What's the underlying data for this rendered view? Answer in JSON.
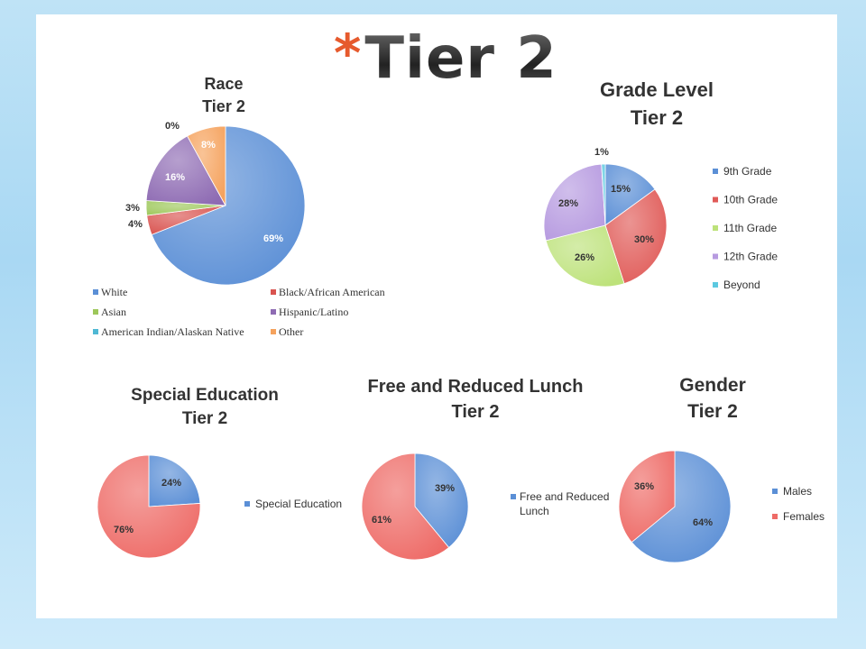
{
  "slide": {
    "title_star": "*",
    "title": "Tier 2"
  },
  "chart_data": [
    {
      "id": "race",
      "type": "pie",
      "title": "Race",
      "subtitle": "Tier 2",
      "legend": "bottom",
      "slices": [
        {
          "label": "White",
          "value": 69,
          "text": "69%",
          "color": "#5b8fd6"
        },
        {
          "label": "Black/African American",
          "value": 4,
          "text": "4%",
          "color": "#d9534f"
        },
        {
          "label": "Asian",
          "value": 3,
          "text": "3%",
          "color": "#9dc75a"
        },
        {
          "label": "Hispanic/Latino",
          "value": 16,
          "text": "16%",
          "color": "#8e6bb3"
        },
        {
          "label": "American Indian/Alaskan Native",
          "value": 0,
          "text": "0%",
          "color": "#4fb8d4"
        },
        {
          "label": "Other",
          "value": 8,
          "text": "8%",
          "color": "#f5a25d"
        }
      ]
    },
    {
      "id": "grade",
      "type": "pie",
      "title": "Grade Level",
      "subtitle": "Tier 2",
      "legend": "right",
      "slices": [
        {
          "label": "9th Grade",
          "value": 15,
          "text": "15%",
          "color": "#5b8fd6"
        },
        {
          "label": "10th Grade",
          "value": 30,
          "text": "30%",
          "color": "#e05a57"
        },
        {
          "label": "11th Grade",
          "value": 26,
          "text": "26%",
          "color": "#bde27a"
        },
        {
          "label": "12th Grade",
          "value": 28,
          "text": "28%",
          "color": "#b79be0"
        },
        {
          "label": "Beyond",
          "value": 1,
          "text": "1%",
          "color": "#5cc9e0"
        }
      ]
    },
    {
      "id": "sped",
      "type": "pie",
      "title": "Special Education",
      "subtitle": "Tier 2",
      "legend": "right",
      "slices": [
        {
          "label": "Special Education",
          "value": 24,
          "text": "24%",
          "color": "#5b8fd6"
        },
        {
          "label": "",
          "value": 76,
          "text": "76%",
          "color": "#ee6b67"
        }
      ]
    },
    {
      "id": "lunch",
      "type": "pie",
      "title": "Free and Reduced Lunch",
      "subtitle": "Tier 2",
      "legend": "right",
      "slices": [
        {
          "label": "Free and Reduced Lunch",
          "value": 39,
          "text": "39%",
          "color": "#5b8fd6"
        },
        {
          "label": "",
          "value": 61,
          "text": "61%",
          "color": "#ee6b67"
        }
      ]
    },
    {
      "id": "gender",
      "type": "pie",
      "title": "Gender",
      "subtitle": "Tier 2",
      "legend": "right",
      "slices": [
        {
          "label": "Males",
          "value": 64,
          "text": "64%",
          "color": "#5b8fd6"
        },
        {
          "label": "Females",
          "value": 36,
          "text": "36%",
          "color": "#ee6b67"
        }
      ]
    }
  ]
}
